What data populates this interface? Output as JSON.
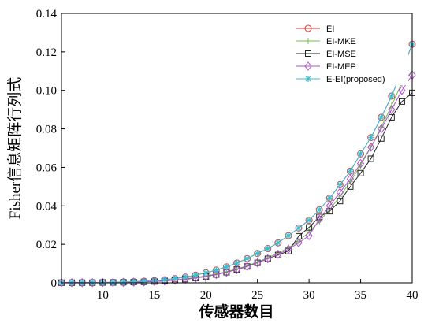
{
  "chart_data": {
    "type": "line",
    "title": "",
    "xlabel": "传感器数目",
    "ylabel": "Fisher信息矩阵行列式",
    "xlim": [
      6,
      40
    ],
    "ylim": [
      0,
      0.14
    ],
    "xticks": [
      10,
      15,
      20,
      25,
      30,
      35,
      40
    ],
    "yticks": [
      0,
      0.02,
      0.04,
      0.06,
      0.08,
      0.1,
      0.12,
      0.14
    ],
    "ytick_labels": [
      "0",
      "0.02",
      "0.04",
      "0.06",
      "0.08",
      "0.10",
      "0.12",
      "0.14"
    ],
    "grid": false,
    "legend": "top-right",
    "x": [
      6,
      7,
      8,
      9,
      10,
      11,
      12,
      13,
      14,
      15,
      16,
      17,
      18,
      19,
      20,
      21,
      22,
      23,
      24,
      25,
      26,
      27,
      28,
      29,
      30,
      31,
      32,
      33,
      34,
      35,
      36,
      37,
      38,
      39,
      40
    ],
    "series": [
      {
        "name": "EI",
        "color": "#e8322e",
        "marker": "circle",
        "values": [
          0.0001,
          0.0001,
          0.0001,
          0.0002,
          0.0002,
          0.0003,
          0.0004,
          0.0006,
          0.0008,
          0.0012,
          0.0016,
          0.0022,
          0.003,
          0.004,
          0.0052,
          0.0066,
          0.0083,
          0.0103,
          0.0126,
          0.0153,
          0.0178,
          0.0208,
          0.0245,
          0.0285,
          0.0325,
          0.038,
          0.044,
          0.051,
          0.058,
          0.067,
          0.0755,
          0.086,
          0.097,
          0.11,
          0.124
        ]
      },
      {
        "name": "EI-MKE",
        "color": "#6fc24a",
        "marker": "plus",
        "values": [
          0.0001,
          0.0001,
          0.0001,
          0.0001,
          0.0002,
          0.0002,
          0.0003,
          0.0004,
          0.0006,
          0.0008,
          0.0011,
          0.0015,
          0.0021,
          0.0028,
          0.0036,
          0.0046,
          0.0058,
          0.0072,
          0.0089,
          0.0108,
          0.013,
          0.0155,
          0.0183,
          0.0215,
          0.0265,
          0.032,
          0.038,
          0.045,
          0.0525,
          0.061,
          0.0705,
          0.081,
          0.092,
          0.104,
          0.1095
        ]
      },
      {
        "name": "EI-MSE",
        "color": "#222222",
        "marker": "square",
        "values": [
          0.0001,
          0.0001,
          0.0001,
          0.0001,
          0.0002,
          0.0002,
          0.0003,
          0.0004,
          0.0005,
          0.0007,
          0.001,
          0.0014,
          0.0019,
          0.0025,
          0.0033,
          0.0043,
          0.0055,
          0.0069,
          0.0085,
          0.0104,
          0.0125,
          0.0145,
          0.0165,
          0.0242,
          0.0288,
          0.0342,
          0.0372,
          0.0425,
          0.05,
          0.057,
          0.0645,
          0.075,
          0.086,
          0.0942,
          0.0987
        ]
      },
      {
        "name": "EI-MEP",
        "color": "#b04fd0",
        "marker": "diamond",
        "values": [
          0.0001,
          0.0001,
          0.0001,
          0.0001,
          0.0002,
          0.0002,
          0.0003,
          0.0004,
          0.0005,
          0.0007,
          0.001,
          0.0014,
          0.0019,
          0.0025,
          0.0033,
          0.0043,
          0.0055,
          0.0069,
          0.0085,
          0.0104,
          0.0125,
          0.0148,
          0.0175,
          0.0208,
          0.0245,
          0.033,
          0.04,
          0.047,
          0.054,
          0.062,
          0.0705,
          0.08,
          0.09,
          0.1,
          0.108
        ]
      },
      {
        "name": "E-EI(proposed)",
        "color": "#3bbfcf",
        "marker": "asterisk",
        "values": [
          0.0001,
          0.0001,
          0.0001,
          0.0002,
          0.0002,
          0.0003,
          0.0004,
          0.0006,
          0.0008,
          0.0012,
          0.0016,
          0.0022,
          0.003,
          0.004,
          0.0052,
          0.0066,
          0.0083,
          0.0103,
          0.0126,
          0.0153,
          0.0178,
          0.0208,
          0.0245,
          0.0285,
          0.0325,
          0.038,
          0.044,
          0.051,
          0.058,
          0.067,
          0.0755,
          0.086,
          0.097,
          0.11,
          0.124
        ]
      }
    ]
  }
}
